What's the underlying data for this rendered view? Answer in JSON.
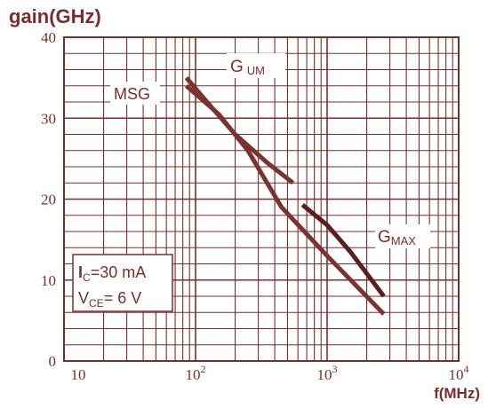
{
  "colors": {
    "grid": "#7a2e2a",
    "curve": "#7a3430",
    "curve_dark": "#5a1e1c",
    "title": "#7a2e2a",
    "label_box_bg": "#ffffff"
  },
  "chart_data": {
    "type": "line",
    "title": "gain(GHz)",
    "xlabel": "f(MHz)",
    "ylabel": "gain(GHz)",
    "xscale": "log",
    "xlim": [
      10,
      10000
    ],
    "ylim": [
      0,
      40
    ],
    "grid": true,
    "y_ticks": [
      {
        "value": 0,
        "label": "0"
      },
      {
        "value": 10,
        "label": "10"
      },
      {
        "value": 20,
        "label": "20"
      },
      {
        "value": 30,
        "label": "30"
      },
      {
        "value": 40,
        "label": "40"
      }
    ],
    "x_ticks": [
      {
        "value": 10,
        "base": "10",
        "exp": ""
      },
      {
        "value": 100,
        "base": "10",
        "exp": "2"
      },
      {
        "value": 1000,
        "base": "10",
        "exp": "3"
      },
      {
        "value": 10000,
        "base": "10",
        "exp": "4"
      }
    ],
    "series": [
      {
        "name": "MSG",
        "label": "MSG",
        "points": [
          [
            85,
            35.0
          ],
          [
            130,
            31.5
          ],
          [
            200,
            28.0
          ],
          [
            350,
            24.5
          ],
          [
            550,
            22.0
          ]
        ]
      },
      {
        "name": "GUM",
        "label_main": "G",
        "label_sub": "UM",
        "points": [
          [
            85,
            34.0
          ],
          [
            150,
            30.5
          ],
          [
            250,
            26.0
          ],
          [
            450,
            19.0
          ],
          [
            1000,
            13.0
          ],
          [
            2700,
            5.8
          ]
        ]
      },
      {
        "name": "GMAX",
        "label_main": "G",
        "label_sub": "MAX",
        "points": [
          [
            650,
            19.3
          ],
          [
            1000,
            16.8
          ],
          [
            1500,
            13.5
          ],
          [
            2700,
            8.0
          ]
        ]
      }
    ],
    "annotations": {
      "ic_main": "I",
      "ic_sub": "C",
      "ic_value": "=30 mA",
      "vce_main": "V",
      "vce_sub": "CE",
      "vce_value": "= 6 V"
    }
  }
}
